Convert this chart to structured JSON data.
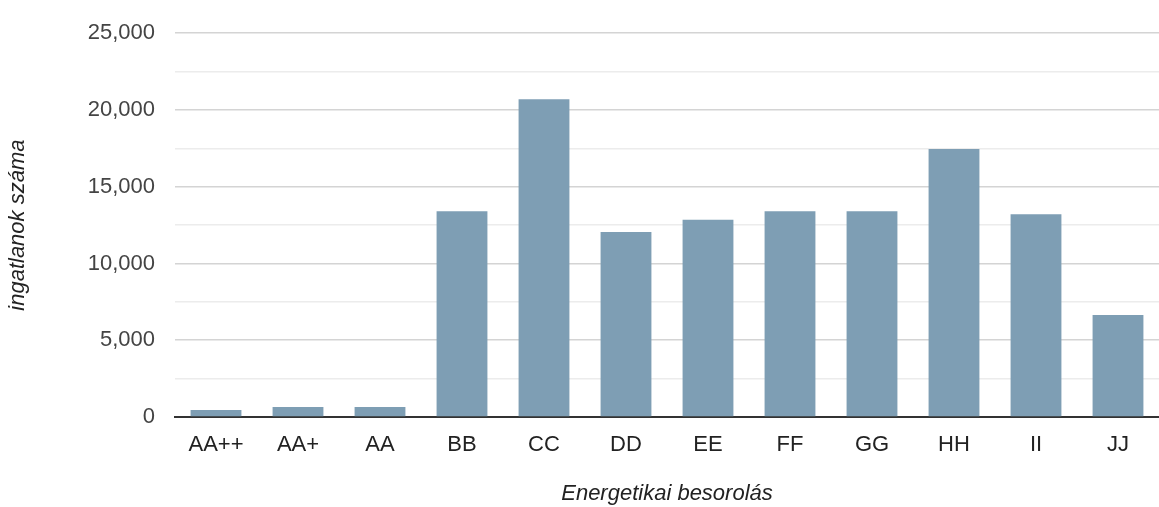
{
  "chart_data": {
    "type": "bar",
    "xlabel": "Energetikai besorolás",
    "ylabel": "ingatlanok száma",
    "categories": [
      "AA++",
      "AA+",
      "AA",
      "BB",
      "CC",
      "DD",
      "EE",
      "FF",
      "GG",
      "HH",
      "II",
      "JJ"
    ],
    "values": [
      450,
      650,
      650,
      13400,
      20700,
      12050,
      12850,
      13400,
      13400,
      17450,
      13200,
      6650
    ],
    "color": "#7e9eb4",
    "ylim": [
      0,
      25000
    ],
    "yticks": [
      0,
      {
        "value": 2500,
        "label": null
      },
      {
        "value": 5000,
        "label": "5,000"
      },
      {
        "value": 7500,
        "label": null
      },
      {
        "value": 10000,
        "label": "10,000"
      },
      {
        "value": 12500,
        "label": null
      },
      {
        "value": 15000,
        "label": "15,000"
      },
      {
        "value": 17500,
        "label": null
      },
      {
        "value": 20000,
        "label": "20,000"
      },
      {
        "value": 22500,
        "label": null
      },
      {
        "value": 25000,
        "label": "25,000"
      }
    ],
    "grid": "y"
  }
}
